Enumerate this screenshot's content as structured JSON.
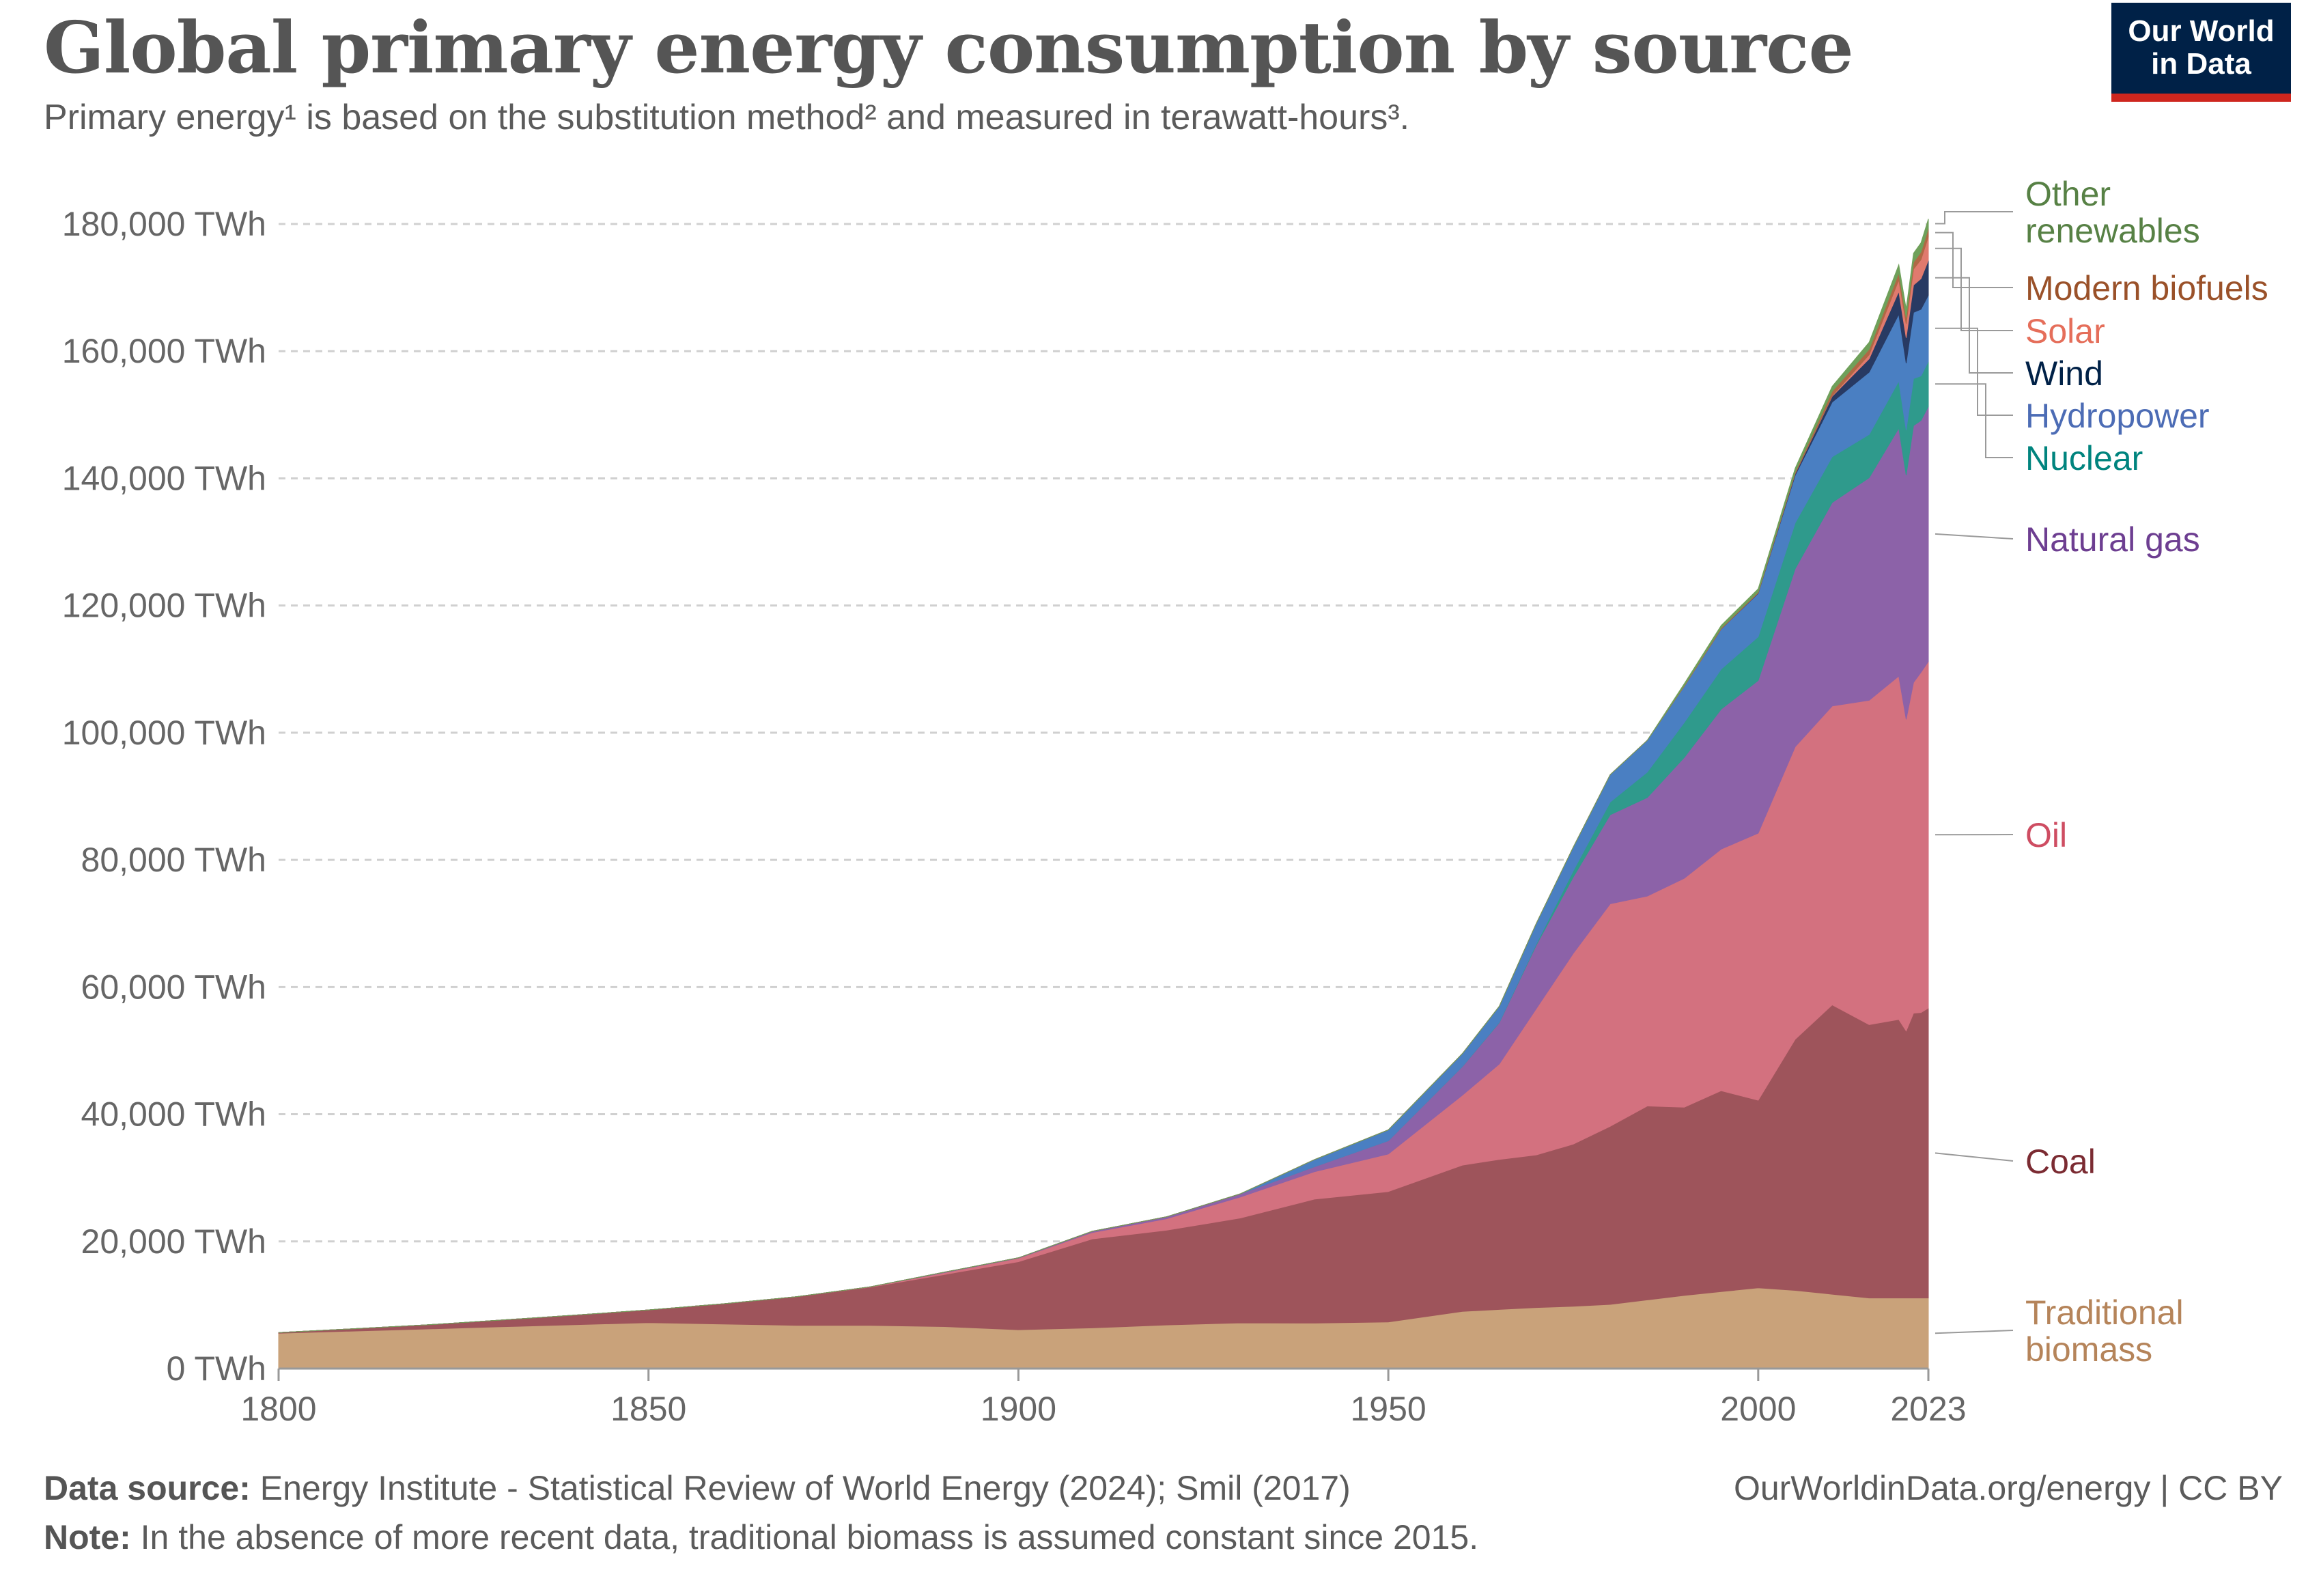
{
  "header": {
    "title": "Global primary energy consumption by source",
    "subtitle": "Primary energy¹ is based on the substitution method² and measured in terawatt-hours³.",
    "logo_line1": "Our World",
    "logo_line2": "in Data"
  },
  "footer": {
    "source_label": "Data source:",
    "source_text": " Energy Institute - Statistical Review of World Energy (2024); Smil (2017)",
    "note_label": "Note:",
    "note_text": " In the absence of more recent data, traditional biomass is assumed constant since 2015.",
    "url": "OurWorldinData.org/energy | CC BY"
  },
  "chart_data": {
    "type": "area",
    "stacked": true,
    "x": [
      1800,
      1810,
      1820,
      1830,
      1840,
      1850,
      1860,
      1870,
      1880,
      1890,
      1900,
      1910,
      1920,
      1930,
      1940,
      1950,
      1960,
      1965,
      1970,
      1975,
      1980,
      1985,
      1990,
      1995,
      2000,
      2005,
      2010,
      2015,
      2019,
      2020,
      2021,
      2022,
      2023
    ],
    "series": [
      {
        "name": "Traditional biomass",
        "color": "#c9a27a",
        "label_color": "#b5845a",
        "values": [
          5560,
          5900,
          6230,
          6570,
          6900,
          7230,
          7000,
          6800,
          6800,
          6600,
          6110,
          6400,
          6860,
          7180,
          7150,
          7340,
          8990,
          9300,
          9600,
          9800,
          10100,
          10800,
          11500,
          12100,
          12700,
          12300,
          11700,
          11100,
          11100,
          11100,
          11100,
          11100,
          11100
        ]
      },
      {
        "name": "Coal",
        "color": "#9e545b",
        "label_color": "#7b2b32",
        "values": [
          97,
          350,
          640,
          1050,
          1500,
          2000,
          3180,
          4500,
          6000,
          8200,
          10700,
          14000,
          14900,
          16500,
          19500,
          20500,
          23000,
          23600,
          24000,
          25500,
          28000,
          30500,
          29600,
          31600,
          29500,
          39500,
          45500,
          43000,
          43800,
          42000,
          44800,
          44900,
          45600
        ]
      },
      {
        "name": "Oil",
        "color": "#d3717f",
        "label_color": "#ce4d62",
        "values": [
          0,
          0,
          0,
          0,
          0,
          0,
          0,
          0,
          70,
          290,
          550,
          1000,
          1800,
          3300,
          4300,
          5900,
          11000,
          15000,
          23000,
          30000,
          35000,
          33000,
          36000,
          38000,
          42000,
          46000,
          47000,
          51000,
          54000,
          49000,
          52000,
          53500,
          54500
        ]
      },
      {
        "name": "Natural gas",
        "color": "#8c62a8",
        "label_color": "#6d3e91",
        "values": [
          0,
          0,
          0,
          0,
          0,
          0,
          0,
          0,
          0,
          70,
          64,
          200,
          300,
          500,
          800,
          2100,
          4500,
          6500,
          10000,
          12000,
          14000,
          15500,
          19000,
          22000,
          24000,
          28000,
          32000,
          35000,
          39000,
          38400,
          40400,
          39600,
          40100
        ]
      },
      {
        "name": "Nuclear",
        "color": "#2f9a8c",
        "label_color": "#00847e",
        "values": [
          0,
          0,
          0,
          0,
          0,
          0,
          0,
          0,
          0,
          0,
          0,
          0,
          0,
          0,
          0,
          0,
          30,
          60,
          200,
          1000,
          2000,
          4000,
          5500,
          6300,
          6900,
          7200,
          7200,
          6800,
          7400,
          7100,
          7400,
          7000,
          7100
        ]
      },
      {
        "name": "Hydropower",
        "color": "#4a7fc2",
        "label_color": "#4c6cb5",
        "values": [
          0,
          0,
          0,
          0,
          0,
          0,
          0,
          0,
          0,
          0,
          0,
          0,
          0,
          0,
          1100,
          1700,
          2000,
          2500,
          3200,
          3700,
          4300,
          5000,
          5700,
          6300,
          6800,
          7500,
          8600,
          9800,
          10500,
          10500,
          10400,
          10500,
          10400
        ]
      },
      {
        "name": "Wind",
        "color": "#283a63",
        "label_color": "#002147",
        "values": [
          0,
          0,
          0,
          0,
          0,
          0,
          0,
          0,
          0,
          0,
          0,
          0,
          0,
          0,
          0,
          0,
          0,
          0,
          0,
          0,
          0,
          0,
          10,
          20,
          80,
          250,
          900,
          2100,
          3600,
          4000,
          4300,
          4800,
          5500
        ]
      },
      {
        "name": "Solar",
        "color": "#e07a6e",
        "label_color": "#e56e5a",
        "values": [
          0,
          0,
          0,
          0,
          0,
          0,
          0,
          0,
          0,
          0,
          0,
          0,
          0,
          0,
          0,
          0,
          0,
          0,
          0,
          0,
          0,
          0,
          0,
          0,
          0,
          0,
          80,
          650,
          1800,
          2200,
          2500,
          3000,
          3700
        ]
      },
      {
        "name": "Modern biofuels",
        "color": "#b06845",
        "label_color": "#9a5129",
        "values": [
          0,
          0,
          0,
          0,
          0,
          0,
          0,
          0,
          0,
          0,
          0,
          0,
          0,
          0,
          0,
          0,
          0,
          0,
          0,
          0,
          0,
          0,
          100,
          150,
          150,
          250,
          700,
          850,
          1100,
          1000,
          1100,
          1200,
          1300
        ]
      },
      {
        "name": "Other renewables",
        "color": "#6fa05a",
        "label_color": "#578145",
        "values": [
          0,
          0,
          0,
          0,
          0,
          0,
          0,
          0,
          0,
          0,
          0,
          0,
          0,
          0,
          0,
          0,
          0,
          0,
          0,
          0,
          0,
          0,
          300,
          400,
          500,
          600,
          800,
          1100,
          1300,
          1350,
          1400,
          1450,
          1500
        ]
      }
    ],
    "y_ticks": [
      "0 TWh",
      "20,000 TWh",
      "40,000 TWh",
      "60,000 TWh",
      "80,000 TWh",
      "100,000 TWh",
      "120,000 TWh",
      "140,000 TWh",
      "160,000 TWh",
      "180,000 TWh"
    ],
    "x_ticks": [
      "1800",
      "1850",
      "1900",
      "1950",
      "2000",
      "2023"
    ],
    "xlim": [
      1800,
      2023
    ],
    "ylim": [
      0,
      180000
    ],
    "grid": true,
    "legend_position": "right"
  }
}
